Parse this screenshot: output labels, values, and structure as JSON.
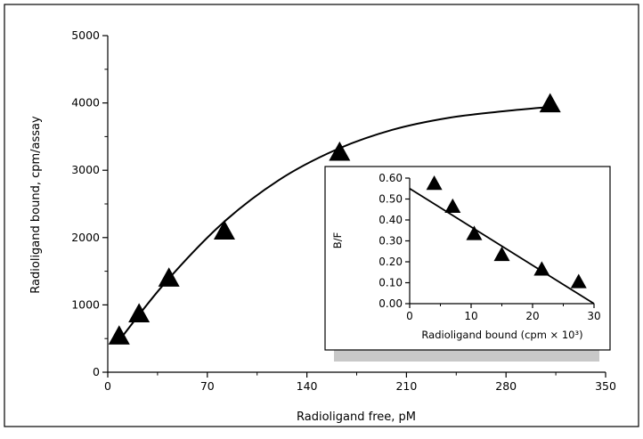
{
  "chart_data": [
    {
      "type": "scatter",
      "title": "",
      "xlabel": "Radioligand free, pM",
      "ylabel": "Radioligand bound, cpm/assay",
      "xlim": [
        0,
        350
      ],
      "ylim": [
        0,
        5000
      ],
      "x_ticks": [
        0,
        70,
        140,
        210,
        280,
        350
      ],
      "y_ticks": [
        0,
        1000,
        2000,
        3000,
        4000,
        5000
      ],
      "x_tick_labels": [
        "0",
        "70",
        "140",
        "210",
        "280",
        "350"
      ],
      "y_tick_labels": [
        "0",
        "1000",
        "2000",
        "3000",
        "4000",
        "5000"
      ],
      "series": [
        {
          "x": [
            8,
            22,
            43,
            82,
            163,
            311
          ],
          "y": [
            520,
            850,
            1380,
            2080,
            3250,
            3970
          ]
        }
      ],
      "fit_curve": {
        "x": [
          8,
          40,
          80,
          120,
          160,
          200,
          240,
          280,
          311
        ],
        "y": [
          470,
          1320,
          2200,
          2850,
          3300,
          3600,
          3780,
          3880,
          3940
        ]
      },
      "grid": false,
      "legend": "none"
    },
    {
      "type": "scatter",
      "title": "",
      "xlabel": "Radioligand bound (cpm × 10³)",
      "ylabel": "B/F",
      "xlim": [
        0,
        30
      ],
      "ylim": [
        0,
        0.6
      ],
      "x_ticks": [
        0,
        10,
        20,
        30
      ],
      "y_ticks": [
        0,
        0.1,
        0.2,
        0.3,
        0.4,
        0.5,
        0.6
      ],
      "x_tick_labels": [
        "0",
        "10",
        "20",
        "30"
      ],
      "y_tick_labels": [
        "0.00",
        "0.10",
        "0.20",
        "0.30",
        "0.40",
        "0.50",
        "0.60"
      ],
      "series": [
        {
          "x": [
            4,
            7,
            10.5,
            15,
            21.5,
            27.5
          ],
          "y": [
            0.57,
            0.46,
            0.33,
            0.23,
            0.16,
            0.1
          ]
        }
      ],
      "fit_line": {
        "x": [
          0,
          30
        ],
        "y": [
          0.55,
          0
        ]
      },
      "grid": false,
      "legend": "none"
    }
  ]
}
